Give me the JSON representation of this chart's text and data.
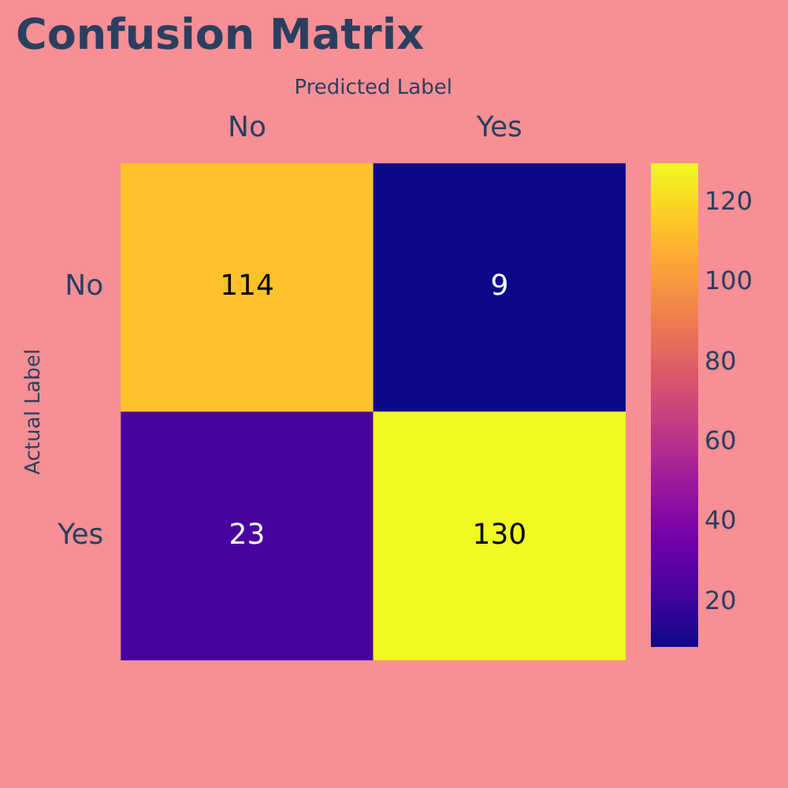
{
  "chart_data": {
    "type": "heatmap",
    "title": "Confusion Matrix",
    "xlabel": "Predicted Label",
    "ylabel": "Actual Label",
    "categories": [
      "No",
      "Yes"
    ],
    "y_categories": [
      "No",
      "Yes"
    ],
    "cells": [
      [
        114,
        9
      ],
      [
        23,
        130
      ]
    ],
    "data_labels": true,
    "clim": [
      9,
      130
    ],
    "cticks": [
      20,
      40,
      60,
      80,
      100,
      120
    ]
  }
}
